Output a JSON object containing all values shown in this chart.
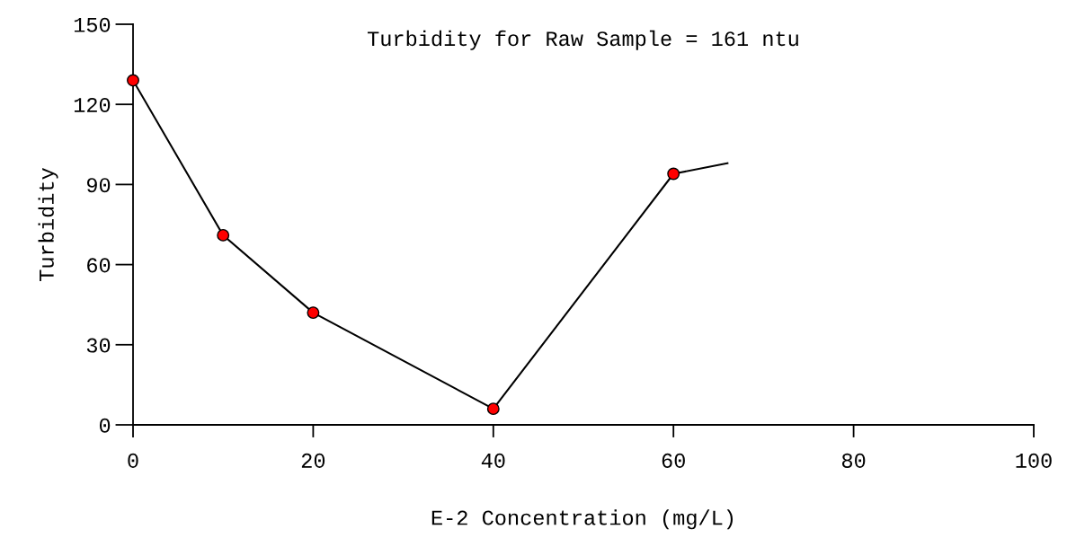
{
  "chart_data": {
    "type": "line",
    "xlabel": "E-2 Concentration (mg/L)",
    "ylabel": "Turbidity",
    "annotations": [
      "Turbidity for Raw Sample = 161 ntu"
    ],
    "series": [
      {
        "x": [
          0,
          10,
          20,
          40,
          60,
          66
        ],
        "values": [
          129,
          71,
          42,
          6,
          94,
          98
        ],
        "color": "#000000",
        "marker": "none"
      },
      {
        "type": "scatter",
        "x": [
          0,
          10,
          20,
          40,
          60
        ],
        "values": [
          129,
          71,
          42,
          6,
          94
        ],
        "color": "#ff0000",
        "marker": "circle"
      }
    ],
    "xlim": [
      0,
      100
    ],
    "xticks": [
      0,
      20,
      40,
      60,
      80,
      100
    ],
    "ylim": [
      0,
      150
    ],
    "yticks": [
      0,
      30,
      60,
      90,
      120,
      150
    ],
    "grid": false,
    "legend": false
  }
}
